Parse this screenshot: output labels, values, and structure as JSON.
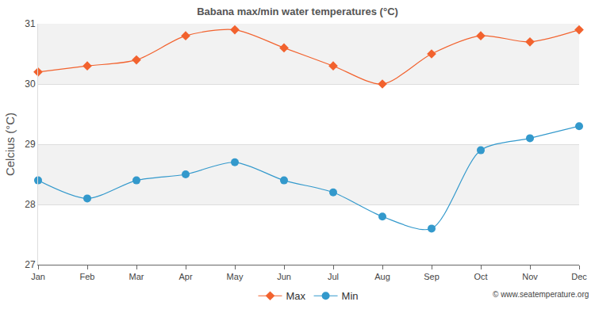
{
  "chart_data": {
    "type": "line",
    "title": "Babana max/min water temperatures (°C)",
    "y_label": "Celcius (°C)",
    "categories": [
      "Jan",
      "Feb",
      "Mar",
      "Apr",
      "May",
      "Jun",
      "Jul",
      "Aug",
      "Sep",
      "Oct",
      "Nov",
      "Dec"
    ],
    "series": [
      {
        "name": "Max",
        "color": "#f2622e",
        "marker": "diamond",
        "values": [
          30.2,
          30.3,
          30.4,
          30.8,
          30.9,
          30.6,
          30.3,
          30.0,
          30.5,
          30.8,
          30.7,
          30.9
        ]
      },
      {
        "name": "Min",
        "color": "#3399cc",
        "marker": "circle",
        "values": [
          28.4,
          28.1,
          28.4,
          28.5,
          28.7,
          28.4,
          28.2,
          27.8,
          27.6,
          28.9,
          29.1,
          29.3
        ]
      }
    ],
    "ylim": [
      27,
      31
    ],
    "yticks": [
      27,
      28,
      29,
      30,
      31
    ],
    "grid": true,
    "legend": "bottom",
    "source": "© www.seatemperature.org"
  }
}
